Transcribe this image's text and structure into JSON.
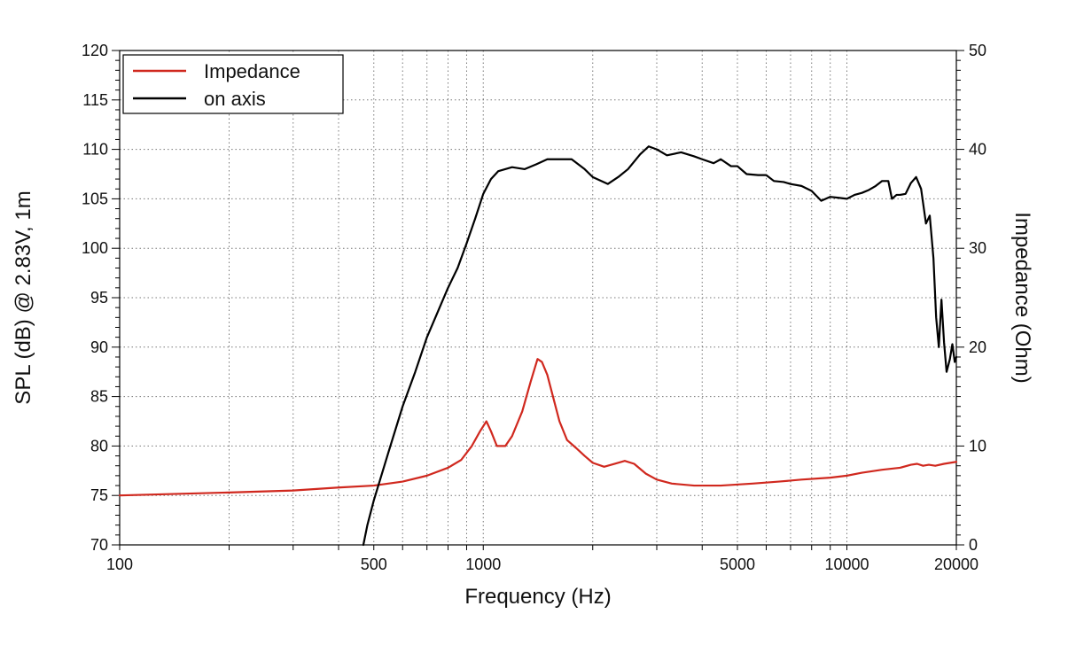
{
  "chart_data": {
    "type": "line",
    "xscale": "log",
    "xlabel": "Frequency (Hz)",
    "ylabel_left": "SPL (dB) @ 2.83V, 1m",
    "ylabel_right": "Impedance (Ohm)",
    "xlim": [
      100,
      20000
    ],
    "ylim_left": [
      70,
      120
    ],
    "ylim_right": [
      0,
      50
    ],
    "grid": true,
    "legend_position": "top-left",
    "x_tick_labels": [
      {
        "value": 100,
        "label": "100"
      },
      {
        "value": 500,
        "label": "500"
      },
      {
        "value": 1000,
        "label": "1000"
      },
      {
        "value": 5000,
        "label": "5000"
      },
      {
        "value": 10000,
        "label": "10000"
      },
      {
        "value": 20000,
        "label": "20000"
      }
    ],
    "x_minor_gridlines": [
      200,
      300,
      400,
      500,
      600,
      700,
      800,
      900,
      1000,
      2000,
      3000,
      4000,
      5000,
      6000,
      7000,
      8000,
      9000,
      10000
    ],
    "y_left_ticks": [
      {
        "value": 70,
        "label": "70"
      },
      {
        "value": 75,
        "label": "75"
      },
      {
        "value": 80,
        "label": "80"
      },
      {
        "value": 85,
        "label": "85"
      },
      {
        "value": 90,
        "label": "90"
      },
      {
        "value": 95,
        "label": "95"
      },
      {
        "value": 100,
        "label": "100"
      },
      {
        "value": 105,
        "label": "105"
      },
      {
        "value": 110,
        "label": "110"
      },
      {
        "value": 115,
        "label": "115"
      },
      {
        "value": 120,
        "label": "120"
      }
    ],
    "y_right_ticks": [
      {
        "value": 0,
        "label": "0"
      },
      {
        "value": 10,
        "label": "10"
      },
      {
        "value": 20,
        "label": "20"
      },
      {
        "value": 30,
        "label": "30"
      },
      {
        "value": 40,
        "label": "40"
      },
      {
        "value": 50,
        "label": "50"
      }
    ],
    "series": [
      {
        "name": "Impedance",
        "axis": "right",
        "color": "#d0281e",
        "points": [
          [
            100,
            5.0
          ],
          [
            200,
            5.3
          ],
          [
            300,
            5.5
          ],
          [
            400,
            5.8
          ],
          [
            500,
            6.0
          ],
          [
            600,
            6.4
          ],
          [
            700,
            7.0
          ],
          [
            800,
            7.8
          ],
          [
            870,
            8.6
          ],
          [
            930,
            10.0
          ],
          [
            980,
            11.5
          ],
          [
            1020,
            12.5
          ],
          [
            1050,
            11.5
          ],
          [
            1090,
            10.0
          ],
          [
            1150,
            10.0
          ],
          [
            1200,
            11.0
          ],
          [
            1280,
            13.5
          ],
          [
            1350,
            16.5
          ],
          [
            1410,
            18.8
          ],
          [
            1450,
            18.5
          ],
          [
            1500,
            17.2
          ],
          [
            1560,
            14.8
          ],
          [
            1620,
            12.5
          ],
          [
            1700,
            10.6
          ],
          [
            1800,
            9.8
          ],
          [
            1900,
            9.0
          ],
          [
            2000,
            8.3
          ],
          [
            2150,
            7.9
          ],
          [
            2300,
            8.2
          ],
          [
            2450,
            8.5
          ],
          [
            2600,
            8.2
          ],
          [
            2800,
            7.2
          ],
          [
            3000,
            6.6
          ],
          [
            3300,
            6.2
          ],
          [
            3800,
            6.0
          ],
          [
            4500,
            6.0
          ],
          [
            5500,
            6.2
          ],
          [
            6500,
            6.4
          ],
          [
            7500,
            6.6
          ],
          [
            9000,
            6.8
          ],
          [
            10000,
            7.0
          ],
          [
            11000,
            7.3
          ],
          [
            12500,
            7.6
          ],
          [
            14000,
            7.8
          ],
          [
            15000,
            8.1
          ],
          [
            15600,
            8.2
          ],
          [
            16200,
            8.0
          ],
          [
            16800,
            8.1
          ],
          [
            17500,
            8.0
          ],
          [
            18500,
            8.2
          ],
          [
            20000,
            8.4
          ]
        ]
      },
      {
        "name": "on axis",
        "axis": "left",
        "color": "#000000",
        "points": [
          [
            468,
            70.0
          ],
          [
            480,
            72.0
          ],
          [
            500,
            74.5
          ],
          [
            550,
            79.5
          ],
          [
            600,
            84.0
          ],
          [
            650,
            87.5
          ],
          [
            700,
            91.0
          ],
          [
            800,
            96.0
          ],
          [
            850,
            98.0
          ],
          [
            900,
            100.5
          ],
          [
            950,
            103.0
          ],
          [
            1000,
            105.5
          ],
          [
            1050,
            107.0
          ],
          [
            1100,
            107.8
          ],
          [
            1200,
            108.2
          ],
          [
            1300,
            108.0
          ],
          [
            1400,
            108.5
          ],
          [
            1500,
            109.0
          ],
          [
            1600,
            109.0
          ],
          [
            1750,
            109.0
          ],
          [
            1900,
            108.0
          ],
          [
            2000,
            107.2
          ],
          [
            2200,
            106.5
          ],
          [
            2350,
            107.2
          ],
          [
            2500,
            108.0
          ],
          [
            2700,
            109.5
          ],
          [
            2850,
            110.3
          ],
          [
            3000,
            110.0
          ],
          [
            3200,
            109.4
          ],
          [
            3500,
            109.7
          ],
          [
            3800,
            109.3
          ],
          [
            4000,
            109.0
          ],
          [
            4300,
            108.6
          ],
          [
            4500,
            109.0
          ],
          [
            4800,
            108.3
          ],
          [
            5000,
            108.3
          ],
          [
            5300,
            107.5
          ],
          [
            5700,
            107.4
          ],
          [
            6000,
            107.4
          ],
          [
            6300,
            106.8
          ],
          [
            6700,
            106.7
          ],
          [
            7000,
            106.5
          ],
          [
            7500,
            106.3
          ],
          [
            8000,
            105.8
          ],
          [
            8500,
            104.8
          ],
          [
            9000,
            105.2
          ],
          [
            9500,
            105.1
          ],
          [
            10000,
            105.0
          ],
          [
            10500,
            105.4
          ],
          [
            11000,
            105.6
          ],
          [
            11500,
            105.9
          ],
          [
            12000,
            106.3
          ],
          [
            12500,
            106.8
          ],
          [
            13000,
            106.8
          ],
          [
            13300,
            105.0
          ],
          [
            13700,
            105.4
          ],
          [
            14000,
            105.4
          ],
          [
            14500,
            105.5
          ],
          [
            15000,
            106.6
          ],
          [
            15500,
            107.2
          ],
          [
            16000,
            106.0
          ],
          [
            16500,
            102.5
          ],
          [
            16900,
            103.3
          ],
          [
            17300,
            99.0
          ],
          [
            17600,
            93.0
          ],
          [
            17900,
            90.0
          ],
          [
            18200,
            94.8
          ],
          [
            18500,
            90.5
          ],
          [
            18800,
            87.5
          ],
          [
            19200,
            88.8
          ],
          [
            19500,
            90.3
          ],
          [
            19800,
            88.5
          ],
          [
            20000,
            89.0
          ]
        ]
      }
    ]
  }
}
